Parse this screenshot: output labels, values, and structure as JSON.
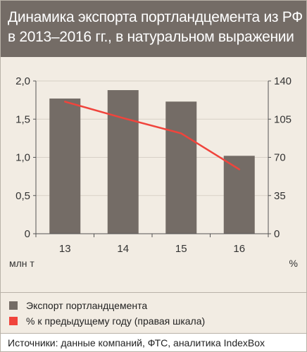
{
  "title_lines": [
    "Динамика экспорта портландцемента из РФ",
    "в 2013–2016 гг., в натуральном выражении"
  ],
  "colors": {
    "header_bg": "#746c66",
    "bar": "#746c66",
    "line": "#f0443c",
    "background": "#f2ece3",
    "grid": "#d7d0c6"
  },
  "legend": {
    "bars_label": "Экспорт портландцемента",
    "line_label": "% к предыдущему году (правая шкала)"
  },
  "source": "Источники: данные компаний, ФТС, аналитика IndexBox",
  "chart_data": {
    "type": "bar",
    "categories": [
      "13",
      "14",
      "15",
      "16"
    ],
    "series": [
      {
        "name": "Экспорт портландцемента",
        "type": "bar",
        "axis": "left",
        "values": [
          1.77,
          1.88,
          1.73,
          1.02
        ]
      },
      {
        "name": "% к предыдущему году (правая шкала)",
        "type": "line",
        "axis": "right",
        "values": [
          null,
          106,
          92,
          59
        ]
      }
    ],
    "line_start_value": 121,
    "y_left": {
      "unit_label": "млн т",
      "ylim": [
        0,
        2.0
      ],
      "ticks": [
        0,
        0.5,
        1.0,
        1.5,
        2.0
      ],
      "tick_labels": [
        "0",
        "0,5",
        "1,0",
        "1,5",
        "2,0"
      ]
    },
    "y_right": {
      "unit_label": "%",
      "ylim": [
        0,
        140
      ],
      "ticks": [
        0,
        35,
        70,
        105,
        140
      ],
      "tick_labels": [
        "0",
        "35",
        "70",
        "105",
        "140"
      ]
    },
    "grid": true
  }
}
